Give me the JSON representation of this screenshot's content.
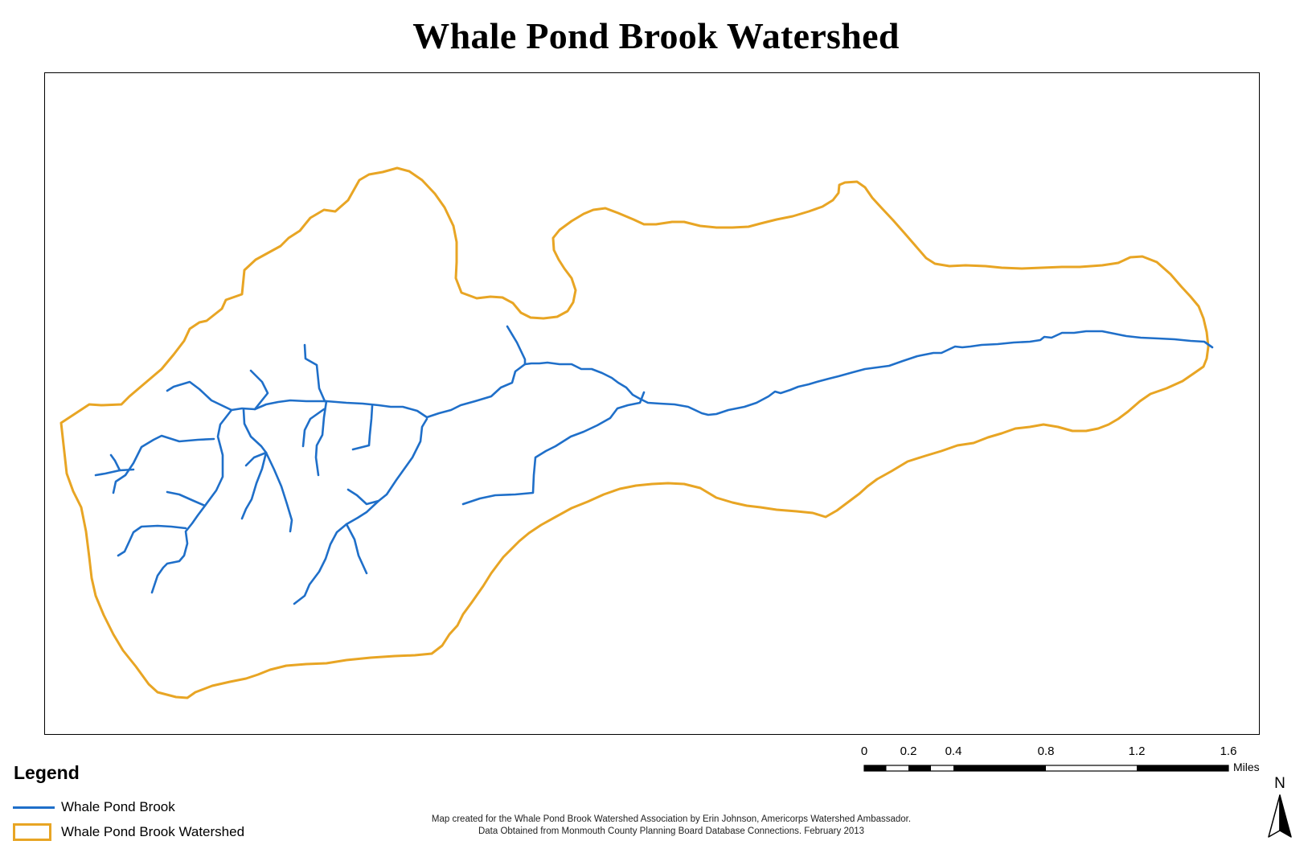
{
  "title": "Whale Pond Brook Watershed",
  "colors": {
    "stream": "#1f6fc9",
    "watershed": "#e8a524",
    "frame": "#000000"
  },
  "legend": {
    "title": "Legend",
    "items": [
      {
        "label": "Whale Pond Brook",
        "symbol": "line"
      },
      {
        "label": "Whale Pond Brook Watershed",
        "symbol": "polygon-outline"
      }
    ]
  },
  "scalebar": {
    "ticks": [
      "0",
      "0.2",
      "0.4",
      "0.8",
      "1.2",
      "1.6"
    ],
    "units": "Miles"
  },
  "north_arrow": {
    "label": "N"
  },
  "credits": [
    "Map created for the Whale Pond Brook Watershed Association by Erin Johnson, Americorps Watershed Ambassador.",
    "Data Obtained from Monmouth County Planning Board Database Connections. February 2013"
  ]
}
